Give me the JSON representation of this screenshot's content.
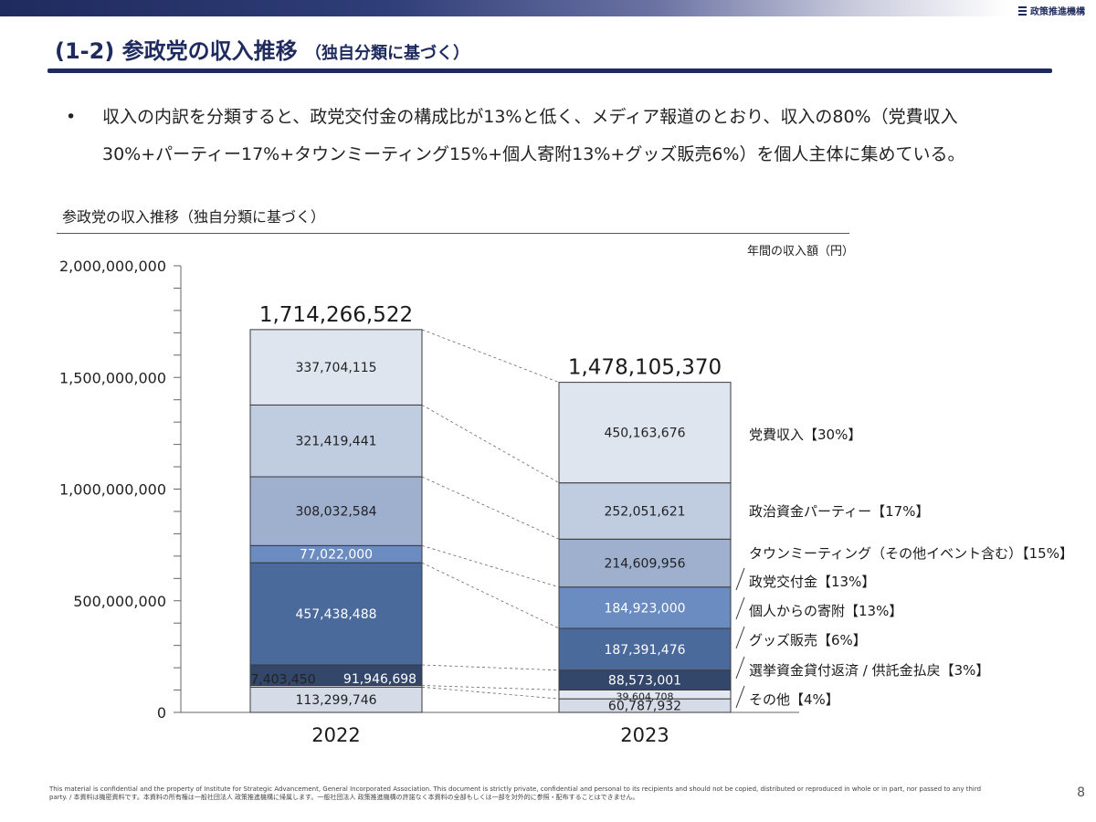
{
  "header": {
    "org_name": "政策推進機構",
    "title_main": "(1-2) 参政党の収入推移",
    "title_sub": "（独自分類に基づく）"
  },
  "bullet": {
    "mark": "•",
    "text": "収入の内訳を分類すると、政党交付金の構成比が13%と低く、メディア報道のとおり、収入の80%（党費収入\n30%+パーティー17%+タウンミーティング15%+個人寄附13%+グッズ販売6%）を個人主体に集めている。"
  },
  "chart_title": "参政党の収入推移（独自分類に基づく）",
  "chart_data": {
    "type": "bar",
    "stacked": true,
    "categories": [
      "2022",
      "2023"
    ],
    "unit_label": "年間の収入額（円）",
    "ylim": [
      0,
      2000000000
    ],
    "y_ticks": [
      0,
      500000000,
      1000000000,
      1500000000,
      2000000000
    ],
    "y_tick_labels": [
      "0",
      "500,000,000",
      "1,000,000,000",
      "1,500,000,000",
      "2,000,000,000"
    ],
    "totals": [
      1714266522,
      1478105370
    ],
    "total_labels": [
      "1,714,266,522",
      "1,478,105,370"
    ],
    "series": [
      {
        "name": "その他【4%】",
        "color": "#d5dce8",
        "values": [
          113299746,
          60787932
        ],
        "labels": [
          "113,299,746",
          "60,787,932"
        ]
      },
      {
        "name": "選挙資金貸付返済 / 供託金払戻【3%】",
        "color": "#e3e8f0",
        "values": [
          7403450,
          39604708
        ],
        "labels": [
          "7,403,450",
          "39,604,708"
        ]
      },
      {
        "name": "グッズ販売【6%】",
        "color": "#33476b",
        "values": [
          91946698,
          88573001
        ],
        "labels": [
          "91,946,698",
          "88,573,001"
        ]
      },
      {
        "name": "個人からの寄附【13%】",
        "color": "#4b6a9c",
        "values": [
          457438488,
          187391476
        ],
        "labels": [
          "457,438,488",
          "187,391,476"
        ]
      },
      {
        "name": "政党交付金【13%】",
        "color": "#6b8cc0",
        "values": [
          77022000,
          184923000
        ],
        "labels": [
          "77,022,000",
          "184,923,000"
        ]
      },
      {
        "name": "タウンミーティング（その他イベント含む）【15%】",
        "color": "#9fb0cf",
        "values": [
          308032584,
          214609956
        ],
        "labels": [
          "308,032,584",
          "214,609,956"
        ]
      },
      {
        "name": "政治資金パーティー【17%】",
        "color": "#c0cce0",
        "values": [
          321419441,
          252051621
        ],
        "labels": [
          "321,419,441",
          "252,051,621"
        ]
      },
      {
        "name": "党費収入【30%】",
        "color": "#dfe5ef",
        "values": [
          337704115,
          450163676
        ],
        "labels": [
          "337,704,115",
          "450,163,676"
        ]
      }
    ]
  },
  "footer": {
    "disclaimer": "This material is confidential and the property of Institute for Strategic Advancement, General Incorporated Association. This document is strictly private, confidential and personal to its recipients and should not be copied, distributed or reproduced in whole or in part, nor passed to any third party. / 本資料は機密資料です。本資料の所有権は一般社団法人 政策推進機構に帰属します。一般社団法人 政策推進機構の許諾なく本資料の全部もしくは一部を対外的に参照・配布することはできません。",
    "page_number": "8"
  }
}
